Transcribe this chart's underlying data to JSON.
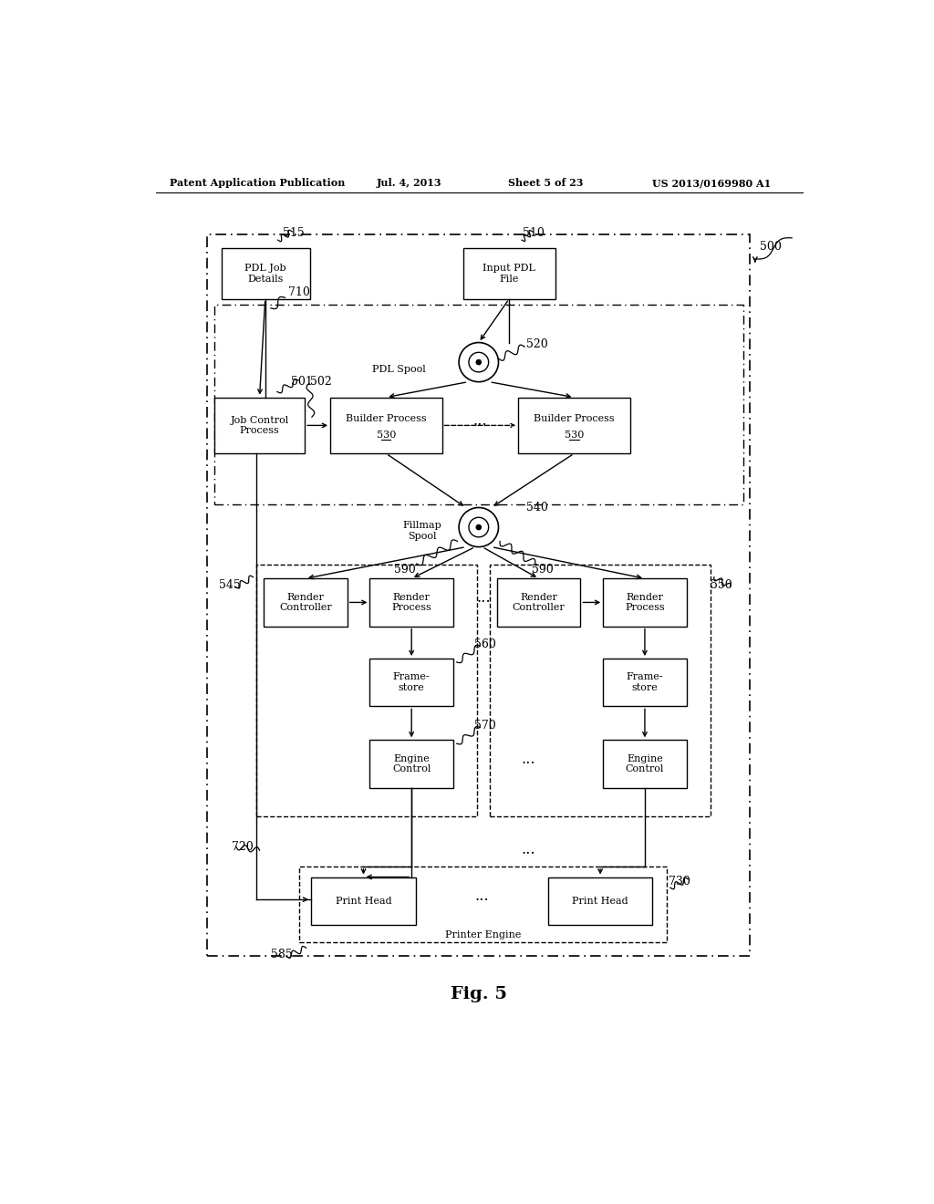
{
  "header_left": "Patent Application Publication",
  "header_mid1": "Jul. 4, 2013",
  "header_mid2": "Sheet 5 of 23",
  "header_right": "US 2013/0169980 A1",
  "fig_label": "Fig. 5",
  "bg_color": "#ffffff"
}
